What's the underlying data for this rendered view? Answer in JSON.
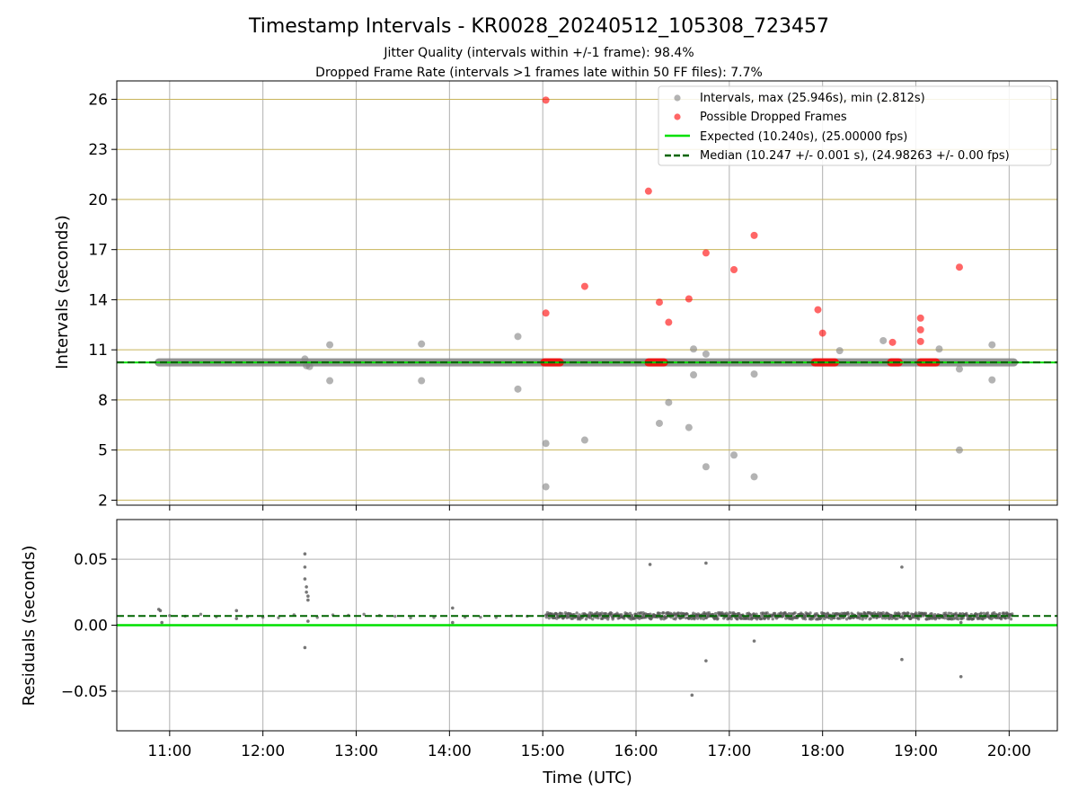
{
  "figure": {
    "title": "Timestamp Intervals - KR0028_20240512_105308_723457",
    "subtitle1": "Jitter Quality (intervals within +/-1 frame): 98.4%",
    "subtitle2": "Dropped Frame Rate (intervals >1 frames late within 50 FF files): 7.7%"
  },
  "colors": {
    "intervals": "#808080",
    "dropped": "#ff0000",
    "expected": "#00e000",
    "median": "#006400",
    "grid_top": "#c8b45a",
    "grid_bottom": "#b0b0b0"
  },
  "chart_data": [
    {
      "type": "scatter",
      "panel": "intervals",
      "ylabel": "Intervals (seconds)",
      "ylim": [
        1.7,
        27.1
      ],
      "yticks": [
        2,
        5,
        8,
        11,
        14,
        17,
        20,
        23,
        26
      ],
      "legend_position": "top-right",
      "legend": [
        "Intervals, max (25.946s), min (2.812s)",
        "Possible Dropped Frames",
        "Expected (10.240s), (25.00000 fps)",
        "Median (10.247 +/- 0.001 s), (24.98263 +/- 0.00 fps)"
      ],
      "expected": 10.24,
      "median": 10.247,
      "baseline_span": [
        "10:53",
        "20:03"
      ],
      "intervals": [
        {
          "t": "12:27",
          "y": 10.45
        },
        {
          "t": "12:28",
          "y": 10.05
        },
        {
          "t": "12:30",
          "y": 10.0
        },
        {
          "t": "12:43",
          "y": 9.15
        },
        {
          "t": "12:43",
          "y": 11.3
        },
        {
          "t": "13:42",
          "y": 11.35
        },
        {
          "t": "13:42",
          "y": 9.15
        },
        {
          "t": "14:44",
          "y": 11.8
        },
        {
          "t": "14:44",
          "y": 8.65
        },
        {
          "t": "15:02",
          "y": 5.4
        },
        {
          "t": "15:02",
          "y": 2.8
        },
        {
          "t": "15:27",
          "y": 5.6
        },
        {
          "t": "16:15",
          "y": 6.6
        },
        {
          "t": "16:21",
          "y": 7.85
        },
        {
          "t": "16:34",
          "y": 6.35
        },
        {
          "t": "16:37",
          "y": 11.05
        },
        {
          "t": "16:37",
          "y": 9.5
        },
        {
          "t": "16:45",
          "y": 10.75
        },
        {
          "t": "16:45",
          "y": 4.0
        },
        {
          "t": "17:03",
          "y": 4.7
        },
        {
          "t": "17:16",
          "y": 9.55
        },
        {
          "t": "17:16",
          "y": 3.4
        },
        {
          "t": "18:11",
          "y": 10.95
        },
        {
          "t": "18:39",
          "y": 11.55
        },
        {
          "t": "19:15",
          "y": 11.05
        },
        {
          "t": "19:28",
          "y": 9.85
        },
        {
          "t": "19:28",
          "y": 5.0
        },
        {
          "t": "19:49",
          "y": 11.3
        },
        {
          "t": "19:49",
          "y": 9.2
        }
      ],
      "dropped": [
        {
          "t": "15:02",
          "y": 25.95
        },
        {
          "t": "15:02",
          "y": 13.2
        },
        {
          "t": "15:27",
          "y": 14.8
        },
        {
          "t": "16:08",
          "y": 20.5
        },
        {
          "t": "16:15",
          "y": 13.85
        },
        {
          "t": "16:21",
          "y": 12.65
        },
        {
          "t": "16:34",
          "y": 14.05
        },
        {
          "t": "16:45",
          "y": 16.8
        },
        {
          "t": "17:03",
          "y": 15.8
        },
        {
          "t": "17:16",
          "y": 17.85
        },
        {
          "t": "17:57",
          "y": 13.4
        },
        {
          "t": "18:00",
          "y": 12.0
        },
        {
          "t": "18:45",
          "y": 11.45
        },
        {
          "t": "19:03",
          "y": 12.9
        },
        {
          "t": "19:03",
          "y": 12.2
        },
        {
          "t": "19:03",
          "y": 11.5
        },
        {
          "t": "19:28",
          "y": 15.95
        }
      ],
      "dropped_clusters": [
        {
          "from": "15:01",
          "to": "15:11",
          "y": 10.247
        },
        {
          "from": "16:08",
          "to": "16:18",
          "y": 10.247
        },
        {
          "from": "17:55",
          "to": "18:08",
          "y": 10.247
        },
        {
          "from": "18:44",
          "to": "18:49",
          "y": 10.247
        },
        {
          "from": "19:03",
          "to": "19:13",
          "y": 10.247
        }
      ]
    },
    {
      "type": "scatter",
      "panel": "residuals",
      "xlabel": "Time (UTC)",
      "ylabel": "Residuals (seconds)",
      "ylim": [
        -0.08,
        0.08
      ],
      "yticks": [
        -0.05,
        0.0,
        0.05
      ],
      "ytick_labels": [
        "−0.05",
        "0.00",
        "0.05"
      ],
      "xlim": [
        "10:26",
        "20:31"
      ],
      "xticks": [
        "11:00",
        "12:00",
        "13:00",
        "14:00",
        "15:00",
        "16:00",
        "17:00",
        "18:00",
        "19:00",
        "20:00"
      ],
      "expected": 0.0,
      "median": 0.007,
      "outliers": [
        {
          "t": "10:53",
          "y": 0.012
        },
        {
          "t": "10:54",
          "y": 0.011
        },
        {
          "t": "10:55",
          "y": 0.002
        },
        {
          "t": "11:43",
          "y": 0.011
        },
        {
          "t": "11:43",
          "y": 0.005
        },
        {
          "t": "12:27",
          "y": 0.054
        },
        {
          "t": "12:27",
          "y": 0.044
        },
        {
          "t": "12:27",
          "y": 0.035
        },
        {
          "t": "12:28",
          "y": 0.029
        },
        {
          "t": "12:28",
          "y": 0.025
        },
        {
          "t": "12:29",
          "y": 0.022
        },
        {
          "t": "12:29",
          "y": 0.019
        },
        {
          "t": "12:29",
          "y": 0.003
        },
        {
          "t": "12:27",
          "y": -0.017
        },
        {
          "t": "14:02",
          "y": 0.013
        },
        {
          "t": "14:02",
          "y": 0.002
        },
        {
          "t": "16:09",
          "y": 0.046
        },
        {
          "t": "16:45",
          "y": 0.047
        },
        {
          "t": "16:45",
          "y": -0.027
        },
        {
          "t": "16:36",
          "y": -0.053
        },
        {
          "t": "17:16",
          "y": -0.012
        },
        {
          "t": "18:51",
          "y": 0.044
        },
        {
          "t": "18:51",
          "y": -0.026
        },
        {
          "t": "19:29",
          "y": -0.039
        },
        {
          "t": "19:29",
          "y": 0.002
        }
      ],
      "dense_span": [
        "15:02",
        "20:02"
      ],
      "sparse_times": [
        "11:00",
        "11:10",
        "11:20",
        "11:30",
        "11:50",
        "12:00",
        "12:10",
        "12:20",
        "12:35",
        "12:45",
        "12:55",
        "13:05",
        "13:15",
        "13:25",
        "13:35",
        "13:50",
        "14:10",
        "14:20",
        "14:30",
        "14:40",
        "14:50"
      ]
    }
  ]
}
